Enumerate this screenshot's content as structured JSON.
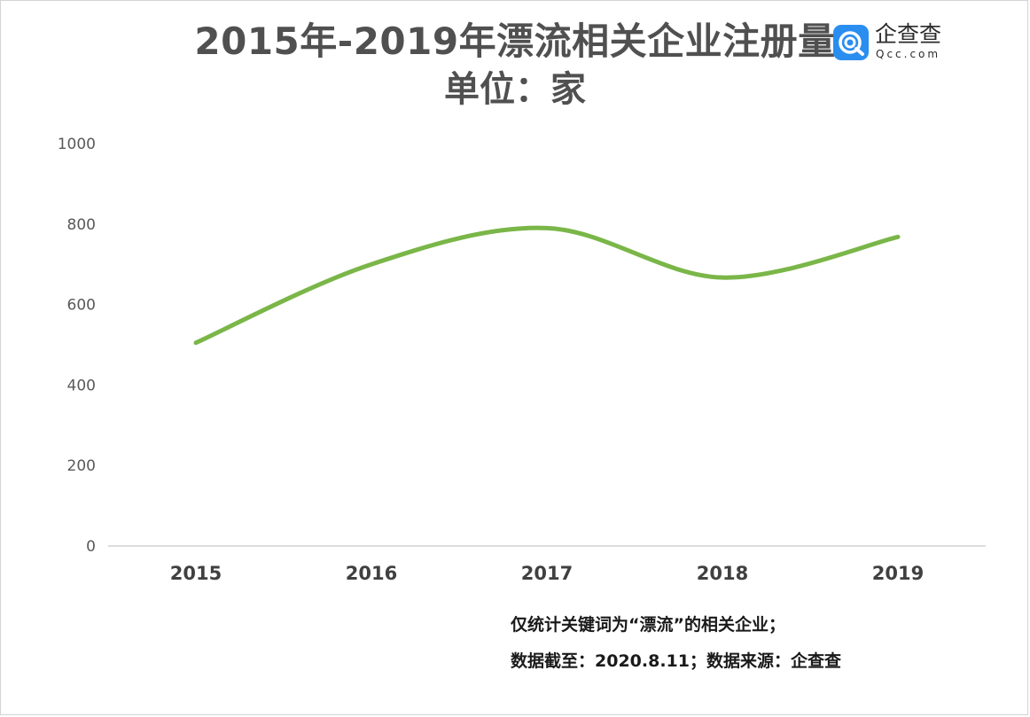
{
  "title": "2015年-2019年漂流相关企业注册量",
  "subtitle": "单位：家",
  "logo": {
    "cn": "企查查",
    "en": "Qcc.com",
    "icon": "qcc-logo-icon",
    "color": "#2a8ef0"
  },
  "notes": [
    "仅统计关键词为“漂流”的相关企业；",
    "数据截至：2020.8.11；数据来源：企查查"
  ],
  "chart_data": {
    "type": "line",
    "title": "2015年-2019年漂流相关企业注册量",
    "subtitle": "单位：家",
    "categories": [
      "2015",
      "2016",
      "2017",
      "2018",
      "2019"
    ],
    "series": [
      {
        "values": [
          505,
          700,
          790,
          667,
          768
        ],
        "color": "#7ab648"
      }
    ],
    "ylim": [
      0,
      1000
    ],
    "yticks": [
      0,
      200,
      400,
      600,
      800,
      1000
    ],
    "grid": false,
    "smooth": true,
    "legend": "none"
  }
}
